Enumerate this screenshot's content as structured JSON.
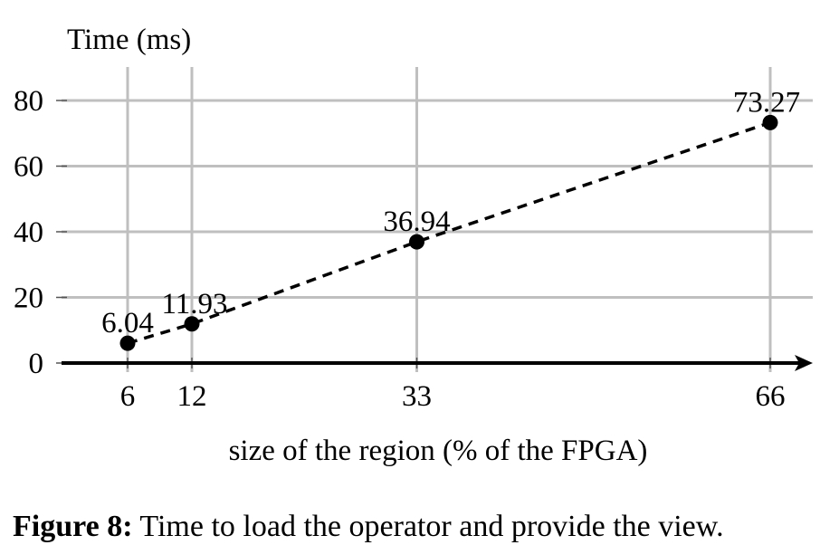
{
  "chart_data": {
    "type": "line",
    "title": "",
    "ylabel": "Time (ms)",
    "xlabel": "size of the region (% of the FPGA)",
    "x": [
      6,
      12,
      33,
      66
    ],
    "series": [
      {
        "values": [
          6.04,
          11.93,
          36.94,
          73.27
        ],
        "data_labels": [
          "6.04",
          "11.93",
          "36.94",
          "73.27"
        ],
        "line_style": "dashed",
        "marker": "filled-circle",
        "color": "#000000"
      }
    ],
    "x_ticks": [
      6,
      12,
      33,
      66
    ],
    "x_tick_labels": [
      "6",
      "12",
      "33",
      "66"
    ],
    "y_ticks": [
      0,
      20,
      40,
      60,
      80
    ],
    "y_tick_labels": [
      "0",
      "20",
      "40",
      "60",
      "80"
    ],
    "xlim": [
      0,
      68
    ],
    "ylim": [
      0,
      80
    ],
    "grid": true,
    "grid_color": "#bfbfbf",
    "legend": "none"
  },
  "caption": {
    "label": "Figure 8:",
    "text": " Time to load the operator and provide the view."
  }
}
